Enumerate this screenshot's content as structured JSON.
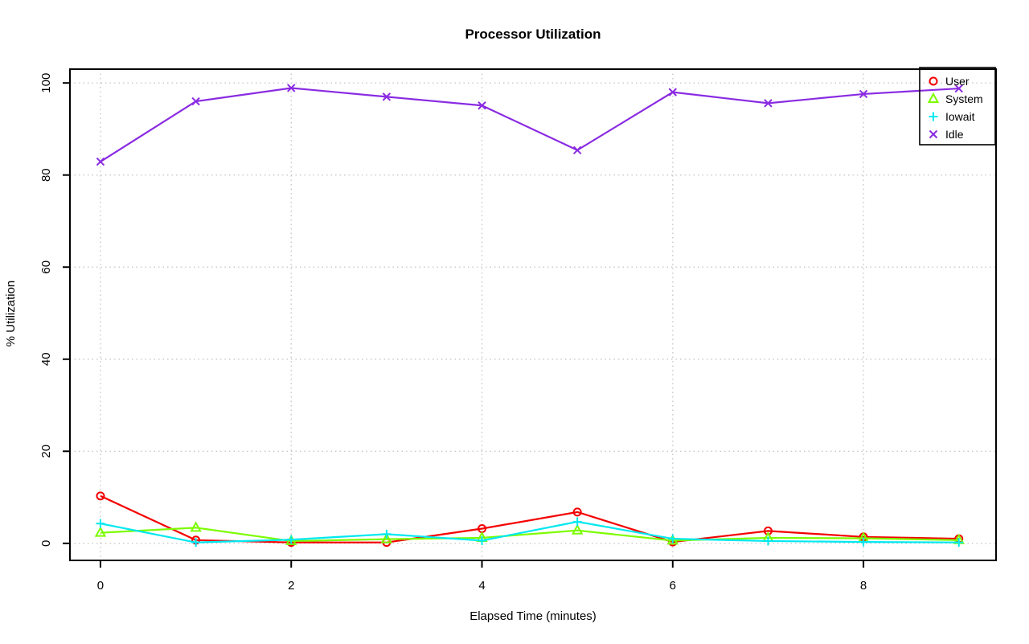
{
  "chart_data": {
    "type": "line",
    "title": "Processor Utilization",
    "xlabel": "Elapsed Time (minutes)",
    "ylabel": "% Utilization",
    "x": [
      0,
      1,
      2,
      3,
      4,
      5,
      6,
      7,
      8,
      9
    ],
    "series": [
      {
        "name": "User",
        "marker": "circle",
        "color": "#f40000",
        "values": [
          10.3,
          0.7,
          0.2,
          0.2,
          3.2,
          6.8,
          0.3,
          2.7,
          1.4,
          1.0
        ]
      },
      {
        "name": "System",
        "marker": "triangle",
        "color": "#7cfc00",
        "values": [
          2.3,
          3.4,
          0.5,
          0.9,
          1.2,
          2.8,
          0.6,
          1.2,
          1.1,
          0.7
        ]
      },
      {
        "name": "Iowait",
        "marker": "plus",
        "color": "#00e8f0",
        "values": [
          4.3,
          0.2,
          0.8,
          2.0,
          0.6,
          4.7,
          1.0,
          0.5,
          0.3,
          0.2
        ]
      },
      {
        "name": "Idle",
        "marker": "x",
        "color": "#8a2be2",
        "values": [
          82.9,
          96.0,
          98.9,
          97.0,
          95.1,
          85.4,
          98.0,
          95.6,
          97.6,
          98.8
        ]
      }
    ],
    "x_ticks": [
      0,
      2,
      4,
      6,
      8
    ],
    "y_ticks": [
      0,
      20,
      40,
      60,
      80,
      100
    ],
    "xlim": [
      -0.32,
      9.39
    ],
    "ylim": [
      -3.7,
      103.0
    ],
    "grid": true,
    "grid_color": "#c8c8c8",
    "axis_color": "#000000",
    "legend_position": "top-right",
    "legend_entries": [
      "User",
      "System",
      "Iowait",
      "Idle"
    ]
  }
}
